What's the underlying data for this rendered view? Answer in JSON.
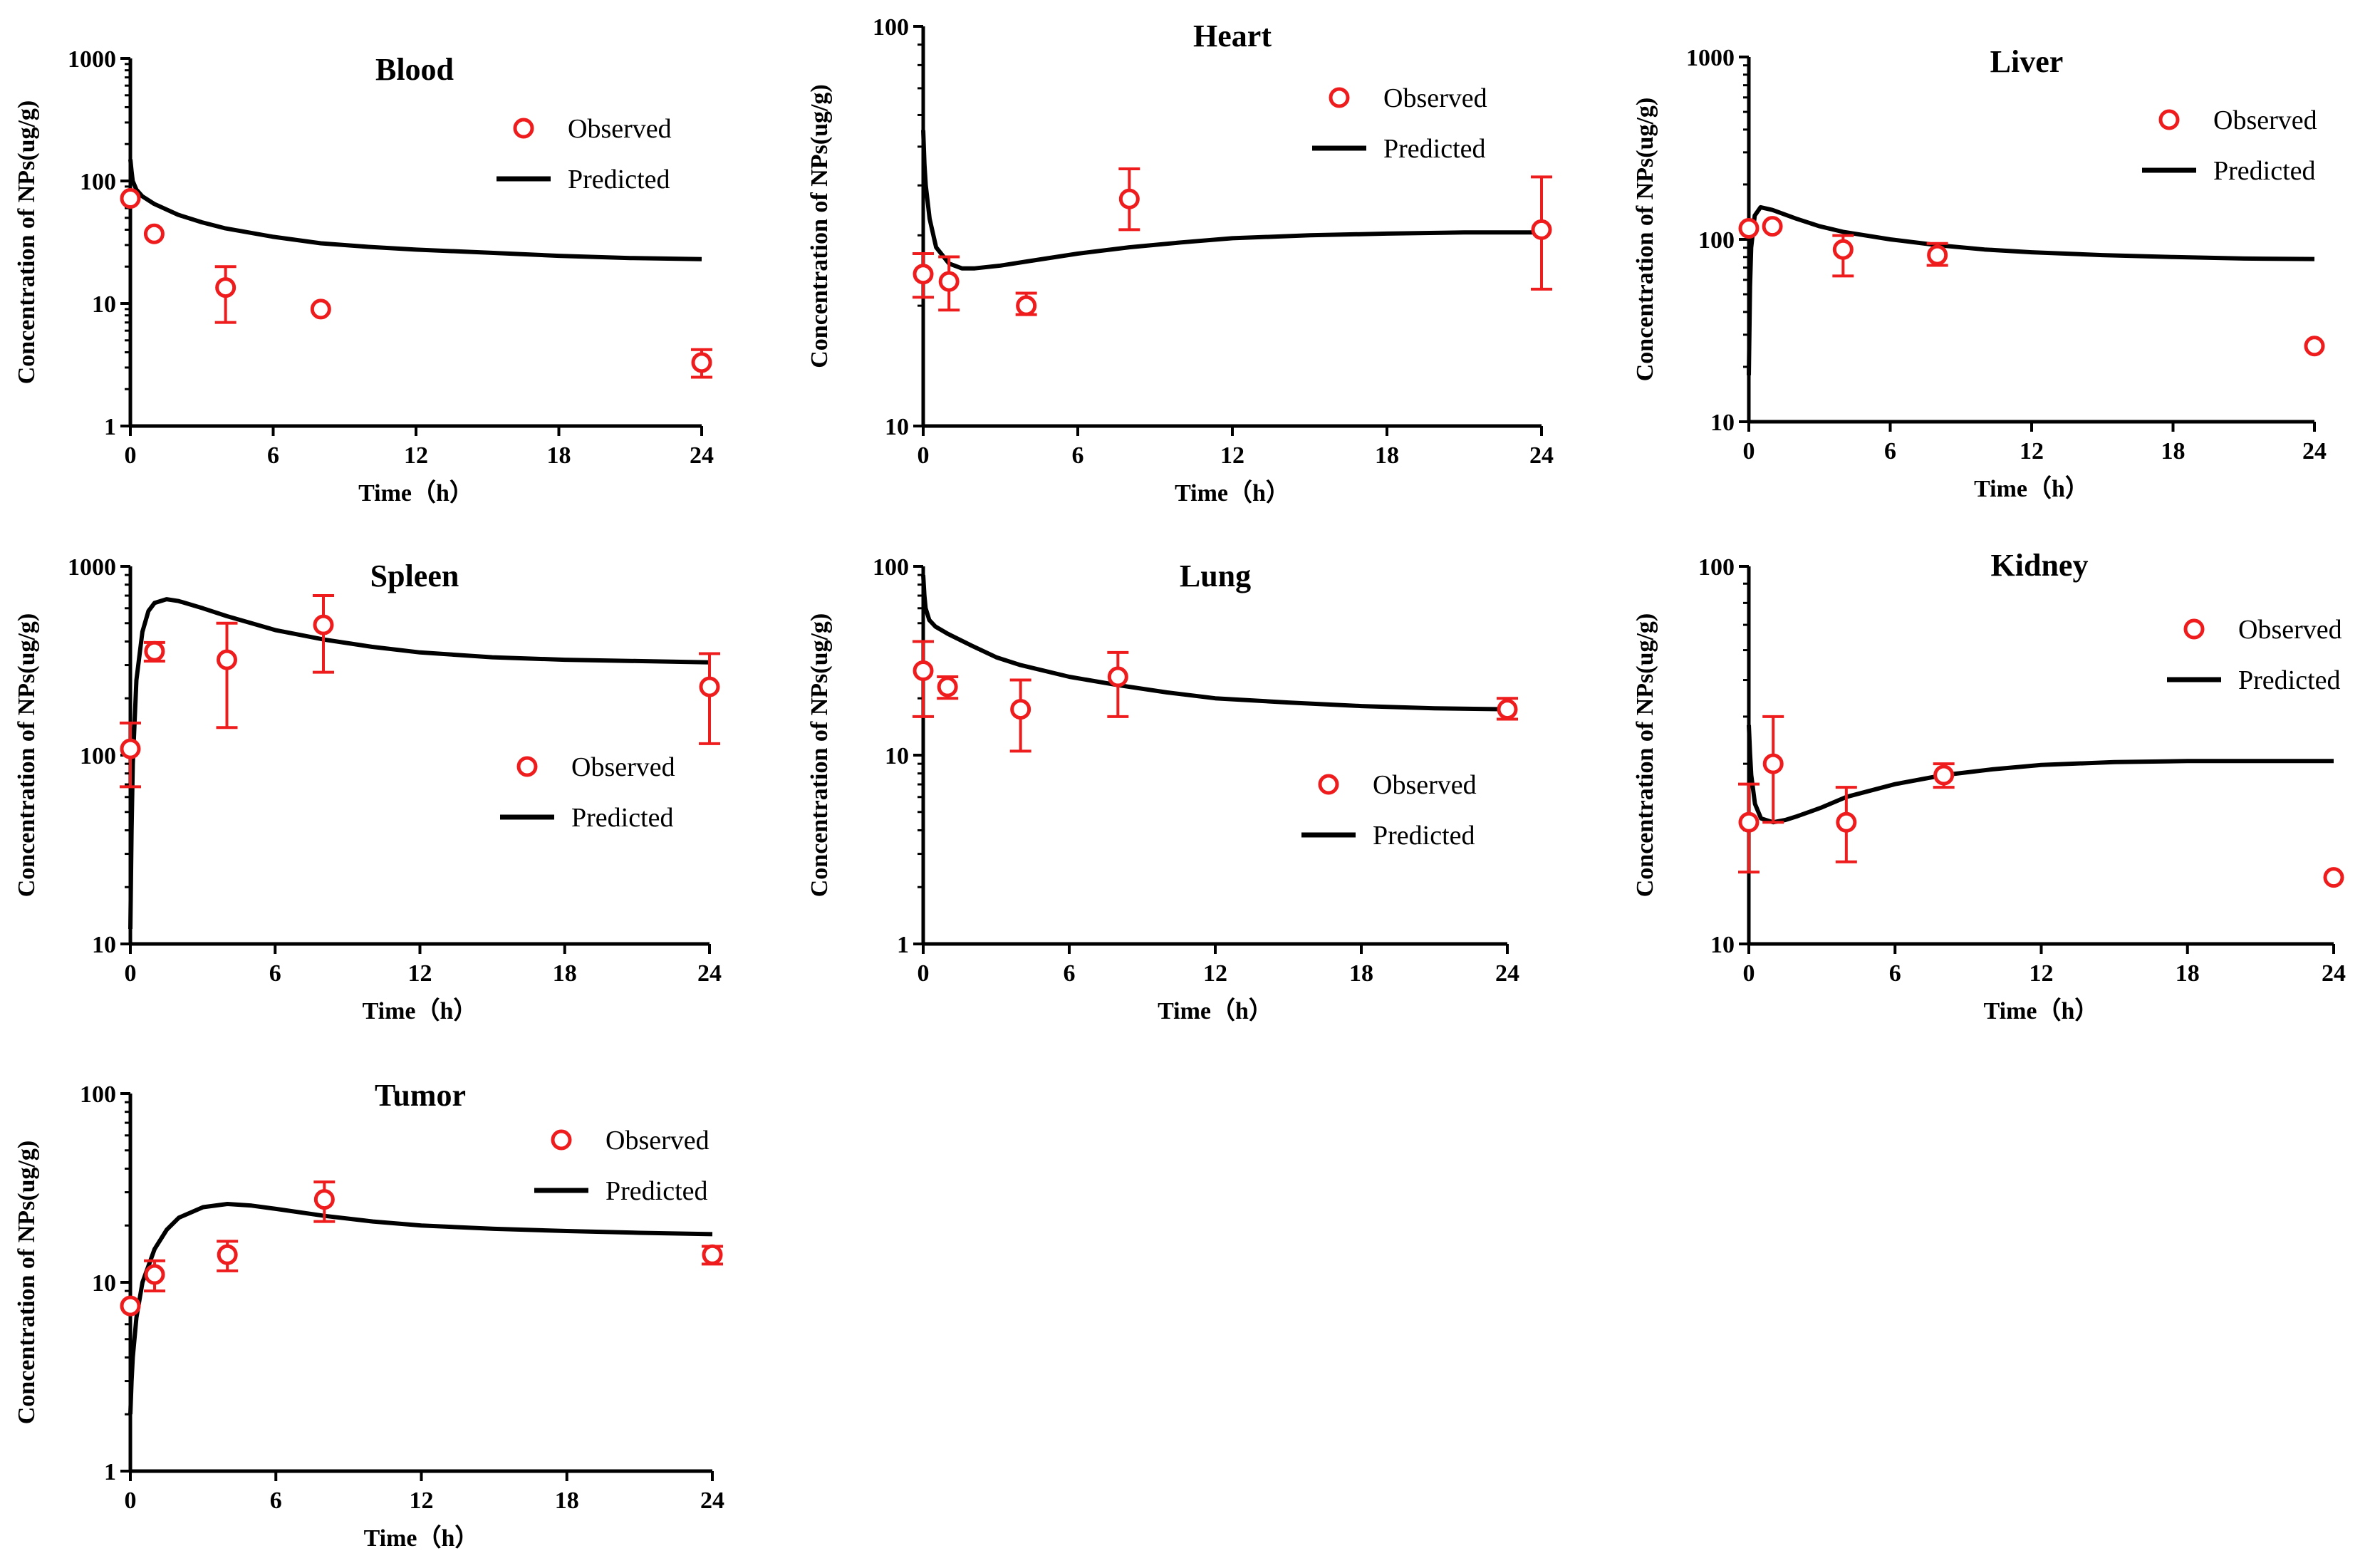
{
  "colors": {
    "observed": "#ee1c1c",
    "predicted": "#000000",
    "axis": "#000000"
  },
  "chart_data": [
    {
      "type": "line",
      "title": "Blood",
      "xlabel": "Time（h）",
      "ylabel": "Concentration of NPs(ug/g)",
      "yscale": "log",
      "xlim": [
        0,
        24
      ],
      "ylim": [
        1,
        1000
      ],
      "xticks": [
        0,
        6,
        12,
        18,
        24
      ],
      "xtick_labels": [
        "0",
        "6",
        "12",
        "18",
        "24"
      ],
      "yticks": [
        1,
        10,
        100,
        1000
      ],
      "ytick_labels": [
        "1",
        "10",
        "100",
        "1000"
      ],
      "legend": {
        "position": "top-right",
        "observed_label": "Observed",
        "predicted_label": "Predicted"
      },
      "observed": {
        "x": [
          0,
          1,
          4,
          8,
          24
        ],
        "y": [
          72,
          37,
          13.5,
          9,
          3.3
        ],
        "err_low": [
          null,
          null,
          7,
          null,
          2.5
        ],
        "err_high": [
          null,
          null,
          20,
          null,
          4.2
        ]
      },
      "predicted": {
        "x": [
          0,
          0.05,
          0.1,
          0.25,
          0.5,
          1,
          2,
          3,
          4,
          6,
          8,
          10,
          12,
          15,
          18,
          21,
          24
        ],
        "y": [
          150,
          120,
          100,
          85,
          75,
          65,
          53,
          46,
          41,
          35,
          31,
          29,
          27.5,
          26,
          24.5,
          23.5,
          23
        ]
      }
    },
    {
      "type": "line",
      "title": "Heart",
      "xlabel": "Time（h）",
      "ylabel": "Concentration of NPs(ug/g)",
      "yscale": "log",
      "xlim": [
        0,
        24
      ],
      "ylim": [
        10,
        100
      ],
      "xticks": [
        0,
        6,
        12,
        18,
        24
      ],
      "xtick_labels": [
        "0",
        "6",
        "12",
        "18",
        "24"
      ],
      "yticks": [
        10,
        100
      ],
      "ytick_labels": [
        "10",
        "100"
      ],
      "legend": {
        "position": "top-right",
        "observed_label": "Observed",
        "predicted_label": "Predicted"
      },
      "observed": {
        "x": [
          0,
          1,
          4,
          8,
          24
        ],
        "y": [
          24,
          23,
          20,
          37,
          31
        ],
        "err_low": [
          21,
          19.5,
          19,
          31,
          22
        ],
        "err_high": [
          27,
          26.5,
          21.5,
          44,
          42
        ]
      },
      "predicted": {
        "x": [
          0,
          0.05,
          0.1,
          0.25,
          0.5,
          1,
          1.5,
          2,
          3,
          4,
          6,
          8,
          10,
          12,
          15,
          18,
          21,
          24
        ],
        "y": [
          55,
          45,
          40,
          33,
          28,
          25.5,
          24.8,
          24.8,
          25.2,
          25.8,
          27,
          28,
          28.8,
          29.5,
          30,
          30.3,
          30.5,
          30.5
        ]
      }
    },
    {
      "type": "line",
      "title": "Liver",
      "xlabel": "Time（h）",
      "ylabel": "Concentration of NPs(ug/g)",
      "yscale": "log",
      "xlim": [
        0,
        24
      ],
      "ylim": [
        10,
        1000
      ],
      "xticks": [
        0,
        6,
        12,
        18,
        24
      ],
      "xtick_labels": [
        "0",
        "6",
        "12",
        "18",
        "24"
      ],
      "yticks": [
        10,
        100,
        1000
      ],
      "ytick_labels": [
        "10",
        "100",
        "1000"
      ],
      "legend": {
        "position": "top-right",
        "observed_label": "Observed",
        "predicted_label": "Predicted"
      },
      "observed": {
        "x": [
          0,
          1,
          4,
          8,
          24
        ],
        "y": [
          115,
          118,
          88,
          82,
          26
        ],
        "err_low": [
          null,
          null,
          63,
          72,
          null
        ],
        "err_high": [
          null,
          null,
          105,
          95,
          null
        ]
      },
      "predicted": {
        "x": [
          0,
          0.05,
          0.1,
          0.25,
          0.5,
          1,
          2,
          3,
          4,
          6,
          8,
          10,
          12,
          15,
          18,
          21,
          24
        ],
        "y": [
          18,
          55,
          90,
          135,
          150,
          145,
          130,
          118,
          110,
          100,
          93,
          88,
          85,
          82,
          80,
          78.5,
          78
        ]
      }
    },
    {
      "type": "line",
      "title": "Spleen",
      "xlabel": "Time（h）",
      "ylabel": "Concentration of NPs(ug/g)",
      "yscale": "log",
      "xlim": [
        0,
        24
      ],
      "ylim": [
        10,
        1000
      ],
      "xticks": [
        0,
        6,
        12,
        18,
        24
      ],
      "xtick_labels": [
        "0",
        "6",
        "12",
        "18",
        "24"
      ],
      "yticks": [
        10,
        100,
        1000
      ],
      "ytick_labels": [
        "10",
        "100",
        "1000"
      ],
      "legend": {
        "position": "center-right",
        "observed_label": "Observed",
        "predicted_label": "Predicted"
      },
      "observed": {
        "x": [
          0,
          1,
          4,
          8,
          24
        ],
        "y": [
          108,
          355,
          320,
          490,
          230
        ],
        "err_low": [
          68,
          315,
          140,
          275,
          115
        ],
        "err_high": [
          148,
          395,
          500,
          700,
          345
        ]
      },
      "predicted": {
        "x": [
          0,
          0.05,
          0.1,
          0.25,
          0.5,
          0.75,
          1,
          1.5,
          2,
          3,
          4,
          6,
          8,
          10,
          12,
          15,
          18,
          21,
          24
        ],
        "y": [
          12,
          40,
          90,
          250,
          450,
          580,
          640,
          670,
          655,
          600,
          545,
          460,
          410,
          375,
          350,
          330,
          320,
          315,
          310
        ]
      }
    },
    {
      "type": "line",
      "title": "Lung",
      "xlabel": "Time（h）",
      "ylabel": "Concentration of NPs(ug/g)",
      "yscale": "log",
      "xlim": [
        0,
        24
      ],
      "ylim": [
        1,
        100
      ],
      "xticks": [
        0,
        6,
        12,
        18,
        24
      ],
      "xtick_labels": [
        "0",
        "6",
        "12",
        "18",
        "24"
      ],
      "yticks": [
        1,
        10,
        100
      ],
      "ytick_labels": [
        "1",
        "10",
        "100"
      ],
      "legend": {
        "position": "center-right",
        "observed_label": "Observed",
        "predicted_label": "Predicted"
      },
      "observed": {
        "x": [
          0,
          1,
          4,
          8,
          24
        ],
        "y": [
          28,
          23,
          17.5,
          26,
          17.5
        ],
        "err_low": [
          16,
          20,
          10.5,
          16,
          15.5
        ],
        "err_high": [
          40,
          26,
          25,
          35,
          20
        ]
      },
      "predicted": {
        "x": [
          0,
          0.05,
          0.1,
          0.25,
          0.5,
          1,
          2,
          3,
          4,
          6,
          8,
          10,
          12,
          15,
          18,
          21,
          24
        ],
        "y": [
          90,
          70,
          60,
          52,
          48,
          44,
          38,
          33,
          30,
          26,
          23.5,
          21.5,
          20,
          19,
          18.2,
          17.7,
          17.5
        ]
      }
    },
    {
      "type": "line",
      "title": "Kidney",
      "xlabel": "Time（h）",
      "ylabel": "Concentration of NPs(ug/g)",
      "yscale": "log",
      "xlim": [
        0,
        24
      ],
      "ylim": [
        10,
        100
      ],
      "xticks": [
        0,
        6,
        12,
        18,
        24
      ],
      "xtick_labels": [
        "0",
        "6",
        "12",
        "18",
        "24"
      ],
      "yticks": [
        10,
        100
      ],
      "ytick_labels": [
        "10",
        "100"
      ],
      "legend": {
        "position": "top-right",
        "observed_label": "Observed",
        "predicted_label": "Predicted"
      },
      "observed": {
        "x": [
          0,
          1,
          4,
          8,
          24
        ],
        "y": [
          21,
          30,
          21,
          28,
          15
        ],
        "err_low": [
          15.5,
          21,
          16.5,
          26,
          null
        ],
        "err_high": [
          26.5,
          40,
          26,
          30,
          null
        ]
      },
      "predicted": {
        "x": [
          0,
          0.05,
          0.1,
          0.25,
          0.5,
          1,
          1.5,
          2,
          3,
          4,
          6,
          8,
          10,
          12,
          15,
          18,
          21,
          24
        ],
        "y": [
          38,
          32,
          28,
          23.5,
          21.5,
          21,
          21.3,
          21.8,
          23,
          24.5,
          26.5,
          28,
          29,
          29.8,
          30.3,
          30.5,
          30.5,
          30.5
        ]
      }
    },
    {
      "type": "line",
      "title": "Tumor",
      "xlabel": "Time（h）",
      "ylabel": "Concentration of NPs(ug/g)",
      "yscale": "log",
      "xlim": [
        0,
        24
      ],
      "ylim": [
        1,
        100
      ],
      "xticks": [
        0,
        6,
        12,
        18,
        24
      ],
      "xtick_labels": [
        "0",
        "6",
        "12",
        "18",
        "24"
      ],
      "yticks": [
        1,
        10,
        100
      ],
      "ytick_labels": [
        "1",
        "10",
        "100"
      ],
      "legend": {
        "position": "top-right",
        "observed_label": "Observed",
        "predicted_label": "Predicted"
      },
      "observed": {
        "x": [
          0,
          1,
          4,
          8,
          24
        ],
        "y": [
          7.5,
          11,
          14,
          27.5,
          14
        ],
        "err_low": [
          null,
          9,
          11.5,
          21,
          12.5
        ],
        "err_high": [
          null,
          13,
          16.5,
          34,
          15.5
        ]
      },
      "predicted": {
        "x": [
          0,
          0.05,
          0.1,
          0.25,
          0.5,
          1,
          1.5,
          2,
          3,
          4,
          5,
          6,
          8,
          10,
          12,
          15,
          18,
          21,
          24
        ],
        "y": [
          2,
          3,
          4,
          6.5,
          10,
          15,
          19,
          22,
          25,
          26,
          25.5,
          24.5,
          22.5,
          21,
          20,
          19.2,
          18.7,
          18.3,
          18
        ]
      }
    }
  ]
}
